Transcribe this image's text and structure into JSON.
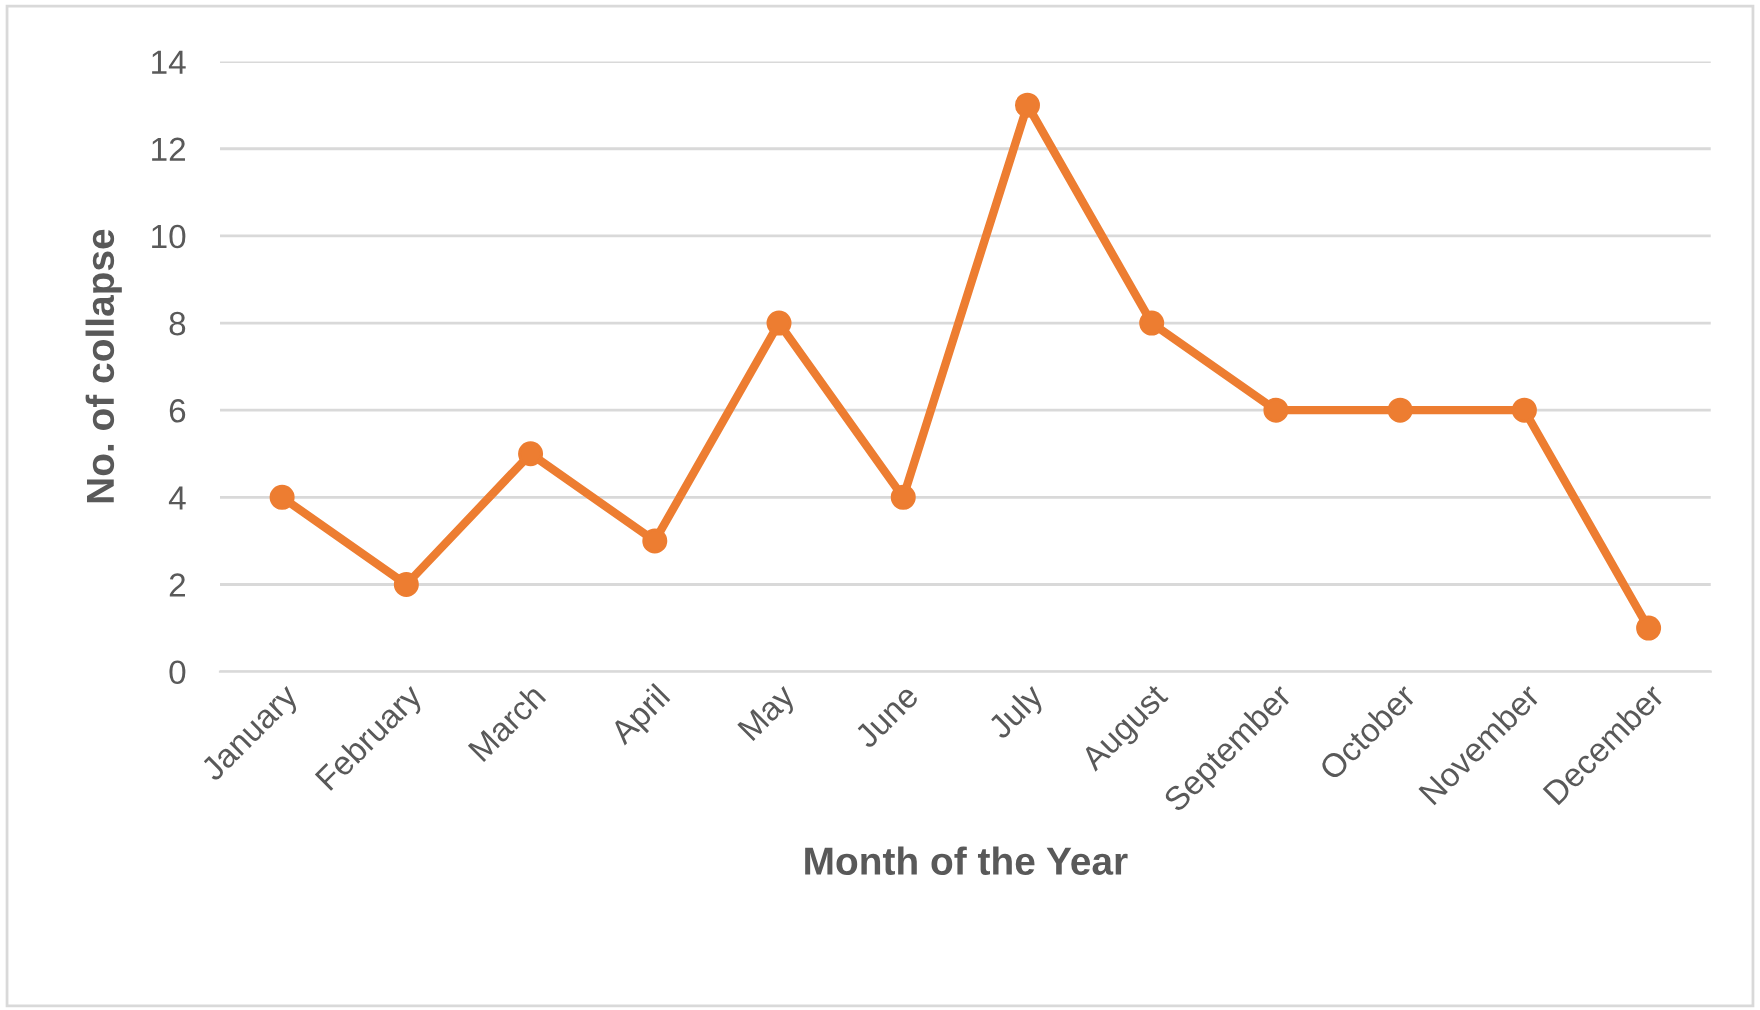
{
  "chart_data": {
    "type": "line",
    "xlabel": "Month of the Year",
    "ylabel": "No. of collapse",
    "categories": [
      "January",
      "February",
      "March",
      "April",
      "May",
      "June",
      "July",
      "August",
      "September",
      "October",
      "November",
      "December"
    ],
    "values": [
      4,
      2,
      5,
      3,
      8,
      4,
      13,
      8,
      6,
      6,
      6,
      1
    ],
    "color": "#ed7d31",
    "marker": "circle",
    "line_style": "solid",
    "ylim": [
      0,
      14
    ],
    "yticks": [
      0,
      2,
      4,
      6,
      8,
      10,
      12,
      14
    ],
    "grid": "y",
    "legend": false
  }
}
